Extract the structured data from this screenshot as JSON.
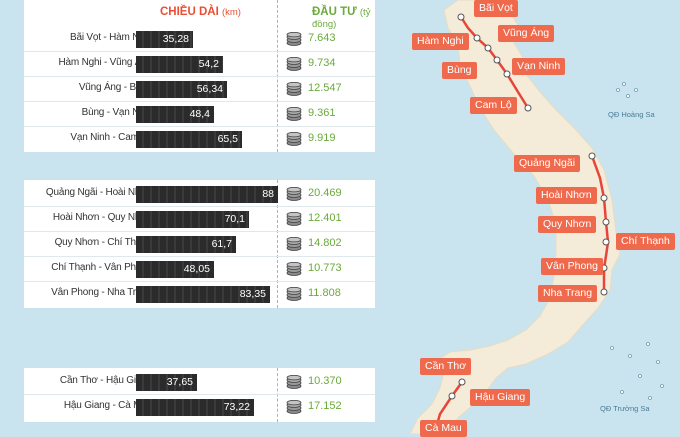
{
  "headers": {
    "length": "CHIỀU DÀI",
    "length_unit": "(km)",
    "investment": "ĐẦU TƯ",
    "investment_unit": "(tỷ đồng)"
  },
  "groups": [
    {
      "rows": [
        {
          "segment": "Bãi Vọt - Hàm Nghi",
          "length_km": 35.28,
          "length_label": "35,28",
          "investment": "7.643"
        },
        {
          "segment": "Hàm Nghi - Vũng Áng",
          "length_km": 54.2,
          "length_label": "54,2",
          "investment": "9.734"
        },
        {
          "segment": "Vũng Áng - Bùng",
          "length_km": 56.34,
          "length_label": "56,34",
          "investment": "12.547"
        },
        {
          "segment": "Bùng - Vạn Ninh",
          "length_km": 48.4,
          "length_label": "48,4",
          "investment": "9.361"
        },
        {
          "segment": "Vạn Ninh - Cam Lộ",
          "length_km": 65.5,
          "length_label": "65,5",
          "investment": "9.919"
        }
      ]
    },
    {
      "rows": [
        {
          "segment": "Quảng Ngãi - Hoài Nhơn",
          "length_km": 88,
          "length_label": "88",
          "investment": "20.469"
        },
        {
          "segment": "Hoài Nhơn - Quy Nhơn",
          "length_km": 70.1,
          "length_label": "70,1",
          "investment": "12.401"
        },
        {
          "segment": "Quy Nhơn - Chí Thạnh",
          "length_km": 61.7,
          "length_label": "61,7",
          "investment": "14.802"
        },
        {
          "segment": "Chí Thạnh - Vân Phong",
          "length_km": 48.05,
          "length_label": "48,05",
          "investment": "10.773"
        },
        {
          "segment": "Vân Phong - Nha Trang",
          "length_km": 83.35,
          "length_label": "83,35",
          "investment": "11.808"
        }
      ]
    },
    {
      "rows": [
        {
          "segment": "Cần Thơ - Hậu Giang",
          "length_km": 37.65,
          "length_label": "37,65",
          "investment": "10.370"
        },
        {
          "segment": "Hậu Giang - Cà Mau",
          "length_km": 73.22,
          "length_label": "73,22",
          "investment": "17.152"
        }
      ]
    }
  ],
  "map": {
    "places": [
      "Bãi Vọt",
      "Hàm Nghi",
      "Vũng Áng",
      "Bùng",
      "Vạn Ninh",
      "Cam Lộ",
      "Quảng Ngãi",
      "Hoài Nhơn",
      "Quy Nhơn",
      "Chí Thạnh",
      "Vân Phong",
      "Nha Trang",
      "Cần Thơ",
      "Hậu Giang",
      "Cà Mau"
    ],
    "sea_labels": [
      "QĐ Hoàng Sa",
      "QĐ Trường Sa"
    ]
  },
  "colors": {
    "route": "#e8453a",
    "label_bg": "#ef6a4c",
    "land": "#f4ecd8",
    "sea": "#c9e3ef",
    "length_header": "#e94f34",
    "investment_text": "#6aaa3a",
    "bar": "#2b2b2b"
  }
}
